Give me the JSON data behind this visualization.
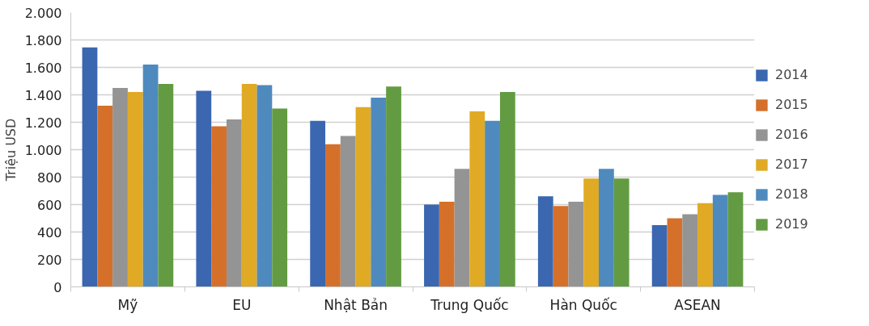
{
  "chart_data": {
    "type": "bar",
    "ylabel": "Triệu USD",
    "categories": [
      "Mỹ",
      "EU",
      "Nhật Bản",
      "Trung Quốc",
      "Hàn Quốc",
      "ASEAN"
    ],
    "series": [
      {
        "name": "2014",
        "color": "#3a67b0",
        "values": [
          1745,
          1430,
          1210,
          600,
          660,
          450
        ]
      },
      {
        "name": "2015",
        "color": "#d5702a",
        "values": [
          1320,
          1170,
          1040,
          620,
          590,
          500
        ]
      },
      {
        "name": "2016",
        "color": "#949494",
        "values": [
          1450,
          1220,
          1100,
          860,
          620,
          530
        ]
      },
      {
        "name": "2017",
        "color": "#e0aa25",
        "values": [
          1420,
          1480,
          1310,
          1280,
          790,
          610
        ]
      },
      {
        "name": "2018",
        "color": "#4e8abd",
        "values": [
          1620,
          1470,
          1380,
          1210,
          860,
          670
        ]
      },
      {
        "name": "2019",
        "color": "#639b42",
        "values": [
          1480,
          1300,
          1460,
          1420,
          790,
          690
        ]
      }
    ],
    "ylim": [
      0,
      2000
    ],
    "yticks": [
      {
        "value": 0,
        "label": "0"
      },
      {
        "value": 200,
        "label": "200"
      },
      {
        "value": 400,
        "label": "400"
      },
      {
        "value": 600,
        "label": "600"
      },
      {
        "value": 800,
        "label": "800"
      },
      {
        "value": 1000,
        "label": "1.000"
      },
      {
        "value": 1200,
        "label": "1.200"
      },
      {
        "value": 1400,
        "label": "1.400"
      },
      {
        "value": 1600,
        "label": "1.600"
      },
      {
        "value": 1800,
        "label": "1.800"
      },
      {
        "value": 2000,
        "label": "2.000"
      }
    ],
    "grid": "y",
    "legend": "right"
  }
}
